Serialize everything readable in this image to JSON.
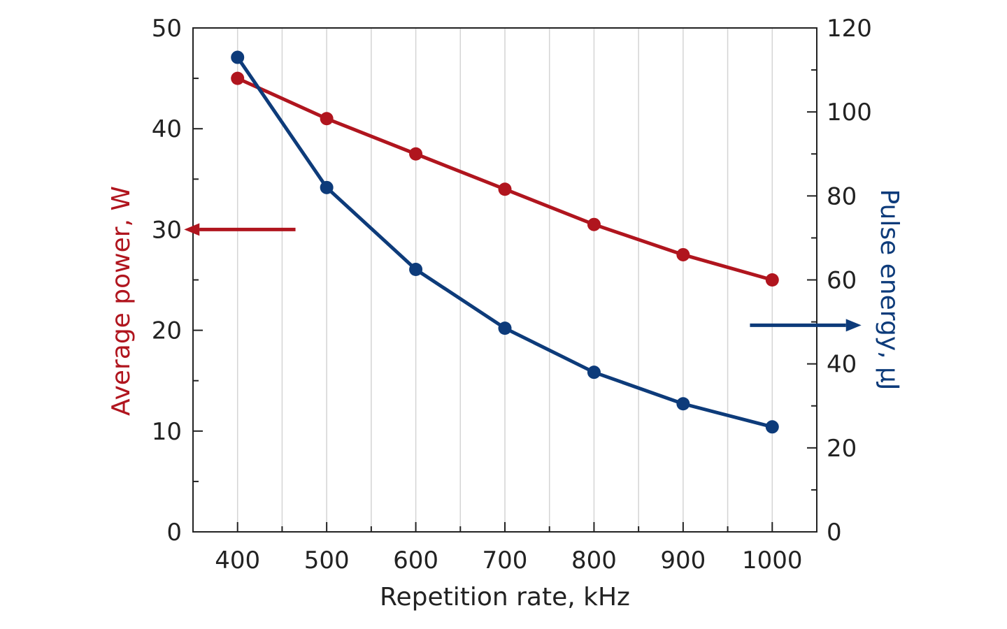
{
  "chart_data": {
    "type": "line",
    "xlabel": "Repetition rate, kHz",
    "ylabel_left": "Average power, W",
    "ylabel_right": "Pulse energy, μJ",
    "x": [
      400,
      500,
      600,
      700,
      800,
      900,
      1000
    ],
    "xlim": [
      350,
      1050
    ],
    "x_ticks": [
      400,
      500,
      600,
      700,
      800,
      900,
      1000
    ],
    "ylim_left": [
      0,
      50
    ],
    "y_ticks_left": [
      0,
      10,
      20,
      30,
      40,
      50
    ],
    "ylim_right": [
      0,
      120
    ],
    "y_ticks_right": [
      0,
      20,
      40,
      60,
      80,
      100,
      120
    ],
    "grid": true,
    "series": [
      {
        "axis": "left",
        "color": "#b0151e",
        "values": [
          45,
          41,
          37.5,
          34,
          30.5,
          27.5,
          25
        ]
      },
      {
        "axis": "right",
        "color": "#0d3b7a",
        "values": [
          113,
          82,
          62.5,
          48.5,
          38,
          30.5,
          25
        ]
      }
    ],
    "annotations": [
      {
        "type": "arrow",
        "direction": "left",
        "axis": "left",
        "color": "#b0151e",
        "from": [
          465,
          30
        ],
        "to": [
          340,
          30
        ]
      },
      {
        "type": "arrow",
        "direction": "right",
        "axis": "left",
        "color": "#0d3b7a",
        "from": [
          975,
          20.5
        ],
        "to": [
          1100,
          20.5
        ]
      }
    ]
  }
}
